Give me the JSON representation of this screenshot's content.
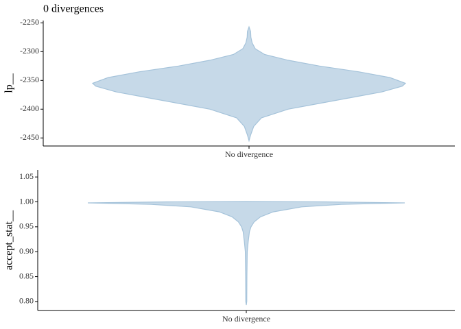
{
  "chart_data": [
    {
      "type": "violin",
      "title": "0 divergences",
      "y_label": "lp__",
      "category": "No divergence",
      "color": "#c6d9e8",
      "edge_color": "#a5c3da",
      "ylim": [
        -2464,
        -2246
      ],
      "yticks": [
        -2450,
        -2400,
        -2350,
        -2300,
        -2250
      ],
      "y": [
        -2455,
        -2445,
        -2430,
        -2415,
        -2400,
        -2390,
        -2380,
        -2370,
        -2360,
        -2355,
        -2345,
        -2335,
        -2325,
        -2315,
        -2305,
        -2295,
        -2285,
        -2275,
        -2265,
        -2257
      ],
      "density": [
        0,
        0.01,
        0.03,
        0.08,
        0.25,
        0.45,
        0.65,
        0.85,
        0.98,
        1.0,
        0.9,
        0.7,
        0.45,
        0.25,
        0.1,
        0.04,
        0.02,
        0.012,
        0.01,
        0
      ]
    },
    {
      "type": "violin",
      "y_label": "accept_stat__",
      "category": "No divergence",
      "color": "#c6d9e8",
      "edge_color": "#a5c3da",
      "ylim": [
        0.782,
        1.064
      ],
      "yticks": [
        {
          "value": 0.8,
          "label": "0.80"
        },
        0.85,
        {
          "value": 0.9,
          "label": "0.90"
        },
        0.95,
        {
          "value": 1,
          "label": "1.00"
        },
        1.05
      ],
      "y": [
        0.793,
        0.8,
        0.85,
        0.9,
        0.92,
        0.94,
        0.95,
        0.96,
        0.97,
        0.98,
        0.99,
        0.995,
        0.998,
        1.0,
        1.001
      ],
      "density": [
        0,
        0.003,
        0.004,
        0.006,
        0.012,
        0.02,
        0.03,
        0.05,
        0.09,
        0.17,
        0.35,
        0.6,
        1.0,
        0.5,
        0
      ]
    }
  ]
}
